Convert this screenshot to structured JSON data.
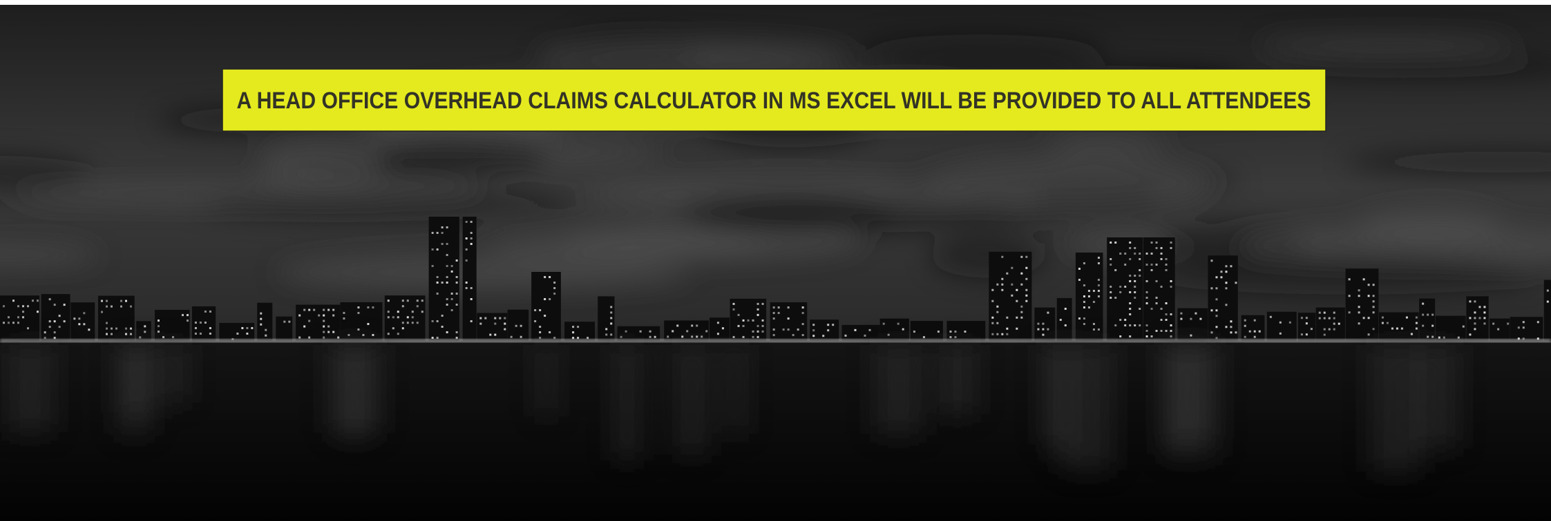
{
  "banner": {
    "text": "A HEAD OFFICE OVERHEAD CLAIMS CALCULATOR IN MS EXCEL WILL BE PROVIDED TO ALL ATTENDEES"
  }
}
